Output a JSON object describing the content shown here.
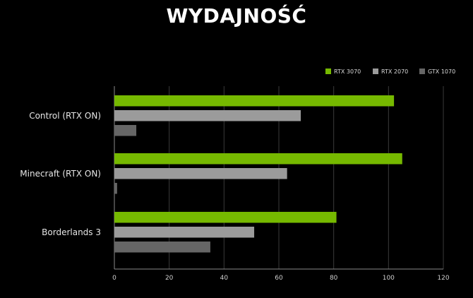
{
  "chart_data": {
    "type": "bar",
    "orientation": "horizontal",
    "title": "WYDAJNOŚĆ",
    "categories": [
      "Control (RTX ON)",
      "Minecraft (RTX ON)",
      "Borderlands 3"
    ],
    "series": [
      {
        "name": "RTX 3070",
        "color": "#76b900",
        "values": [
          102,
          105,
          81
        ]
      },
      {
        "name": "RTX 2070",
        "color": "#9b9b9b",
        "values": [
          68,
          63,
          51
        ]
      },
      {
        "name": "GTX 1070",
        "color": "#666666",
        "values": [
          8,
          1,
          35
        ]
      }
    ],
    "xlim": [
      0,
      120
    ],
    "xticks": [
      0,
      20,
      40,
      60,
      80,
      100,
      120
    ],
    "grid": true,
    "legend_position": "top-right"
  }
}
